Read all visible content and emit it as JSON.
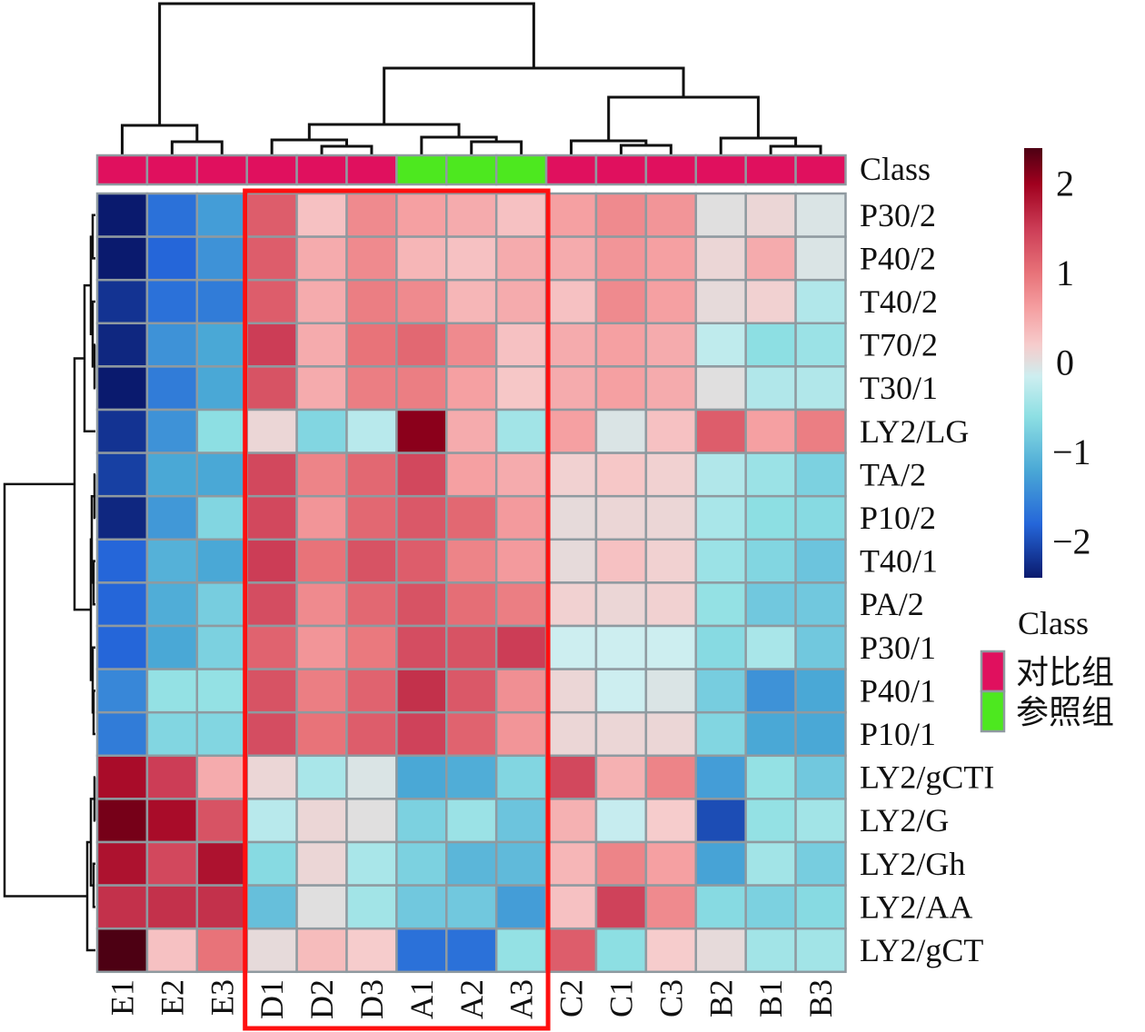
{
  "chart_data": {
    "type": "heatmap",
    "title": "",
    "columns": [
      "E1",
      "E2",
      "E3",
      "D1",
      "D2",
      "D3",
      "A1",
      "A2",
      "A3",
      "C2",
      "C1",
      "C3",
      "B2",
      "B1",
      "B3"
    ],
    "rows": [
      "P30/2",
      "P40/2",
      "T40/2",
      "T70/2",
      "T30/1",
      "LY2/LG",
      "TA/2",
      "P10/2",
      "T40/1",
      "PA/2",
      "P30/1",
      "P40/1",
      "P10/1",
      "LY2/gCTI",
      "LY2/G",
      "LY2/Gh",
      "LY2/AA",
      "LY2/gCT"
    ],
    "values": [
      [
        -2.4,
        -1.7,
        -1.3,
        1.2,
        0.3,
        0.8,
        0.6,
        0.5,
        0.3,
        0.6,
        0.8,
        0.7,
        0.0,
        0.1,
        -0.05
      ],
      [
        -2.4,
        -1.8,
        -1.4,
        1.2,
        0.5,
        0.8,
        0.4,
        0.3,
        0.5,
        0.5,
        0.7,
        0.6,
        0.1,
        0.5,
        -0.05
      ],
      [
        -2.2,
        -1.7,
        -1.6,
        1.2,
        0.5,
        0.9,
        0.8,
        0.4,
        0.5,
        0.3,
        0.8,
        0.6,
        0.05,
        0.15,
        -0.35
      ],
      [
        -2.3,
        -1.4,
        -1.2,
        1.5,
        0.5,
        1.0,
        1.1,
        0.8,
        0.3,
        0.5,
        0.6,
        0.5,
        -0.25,
        -0.6,
        -0.5
      ],
      [
        -2.4,
        -1.6,
        -1.2,
        1.3,
        0.5,
        0.9,
        0.9,
        0.6,
        0.25,
        0.5,
        0.6,
        0.5,
        0.0,
        -0.35,
        -0.35
      ],
      [
        -2.2,
        -1.4,
        -0.6,
        0.1,
        -0.7,
        -0.3,
        2.1,
        0.5,
        -0.45,
        0.6,
        -0.05,
        0.3,
        1.2,
        0.6,
        0.9
      ],
      [
        -2.1,
        -1.2,
        -1.2,
        1.4,
        0.85,
        1.1,
        1.4,
        0.6,
        0.5,
        0.15,
        0.25,
        0.15,
        -0.35,
        -0.5,
        -0.75
      ],
      [
        -2.3,
        -1.35,
        -0.7,
        1.4,
        0.7,
        1.1,
        1.25,
        1.1,
        0.65,
        0.05,
        0.1,
        0.1,
        -0.4,
        -0.6,
        -0.65
      ],
      [
        -1.8,
        -1.1,
        -1.2,
        1.5,
        1.0,
        1.3,
        1.2,
        0.85,
        0.65,
        0.05,
        0.3,
        0.15,
        -0.5,
        -0.7,
        -0.9
      ],
      [
        -1.8,
        -1.15,
        -0.8,
        1.35,
        0.8,
        1.1,
        1.3,
        1.05,
        0.9,
        0.15,
        0.1,
        0.15,
        -0.55,
        -0.85,
        -0.85
      ],
      [
        -1.8,
        -1.2,
        -0.75,
        1.15,
        0.7,
        0.95,
        1.35,
        1.3,
        1.5,
        -0.15,
        -0.15,
        -0.15,
        -0.65,
        -0.4,
        -0.85
      ],
      [
        -1.5,
        -0.55,
        -0.55,
        1.3,
        0.9,
        1.15,
        1.6,
        1.25,
        0.75,
        0.1,
        -0.15,
        -0.05,
        -0.8,
        -1.4,
        -1.2
      ],
      [
        -1.6,
        -0.7,
        -0.7,
        1.35,
        1.0,
        1.2,
        1.45,
        1.15,
        0.7,
        0.1,
        0.1,
        0.1,
        -0.7,
        -1.2,
        -1.2
      ],
      [
        1.9,
        1.5,
        0.5,
        0.1,
        -0.4,
        -0.05,
        -1.2,
        -1.15,
        -0.7,
        1.4,
        0.45,
        0.85,
        -1.3,
        -0.55,
        -0.85
      ],
      [
        2.2,
        1.9,
        1.3,
        -0.3,
        0.1,
        0.0,
        -0.75,
        -0.5,
        -0.9,
        0.45,
        -0.2,
        0.2,
        -2.0,
        -0.55,
        -0.45
      ],
      [
        1.85,
        1.4,
        1.85,
        -0.65,
        0.1,
        -0.4,
        -0.75,
        -1.05,
        -1.0,
        0.4,
        0.85,
        0.6,
        -1.25,
        -0.45,
        -0.8
      ],
      [
        1.6,
        1.6,
        1.6,
        -0.95,
        0.0,
        -0.45,
        -0.85,
        -0.85,
        -1.3,
        0.3,
        1.45,
        0.8,
        -0.65,
        -0.75,
        -0.65
      ],
      [
        2.4,
        0.3,
        1.0,
        0.05,
        0.35,
        0.2,
        -1.7,
        -1.7,
        -0.55,
        1.2,
        -0.6,
        0.2,
        0.05,
        -0.45,
        -0.45
      ]
    ],
    "color_scale": {
      "min": -2.4,
      "max": 2.4,
      "stops": [
        {
          "value": -2.4,
          "color": "#0a1a6e"
        },
        {
          "value": -1.8,
          "color": "#2566d9"
        },
        {
          "value": -1.2,
          "color": "#4aa8d6"
        },
        {
          "value": -0.6,
          "color": "#8ddfe3"
        },
        {
          "value": -0.15,
          "color": "#cdeef0"
        },
        {
          "value": 0.0,
          "color": "#e0dfdf"
        },
        {
          "value": 0.2,
          "color": "#f6cccc"
        },
        {
          "value": 0.6,
          "color": "#f5a0a2"
        },
        {
          "value": 1.0,
          "color": "#e87379"
        },
        {
          "value": 1.5,
          "color": "#cc3d56"
        },
        {
          "value": 2.0,
          "color": "#a0001e"
        },
        {
          "value": 2.4,
          "color": "#4d0013"
        }
      ],
      "ticks": [
        2,
        1,
        0,
        -1,
        -2
      ],
      "tick_labels": [
        "2",
        "1",
        "0",
        "−1",
        "−2"
      ]
    },
    "annotation": {
      "name": "Class",
      "values": [
        "对比组",
        "对比组",
        "对比组",
        "对比组",
        "对比组",
        "对比组",
        "参照组",
        "参照组",
        "参照组",
        "对比组",
        "对比组",
        "对比组",
        "对比组",
        "对比组",
        "对比组"
      ]
    },
    "legend": {
      "title": "Class",
      "entries": [
        {
          "label": "对比组",
          "color": "#e0105e"
        },
        {
          "label": "参照组",
          "color": "#4de81f"
        }
      ],
      "placement": "right"
    },
    "highlight": {
      "columns": [
        "D1",
        "D2",
        "D3",
        "A1",
        "A2",
        "A3"
      ],
      "color": "#ff1010"
    },
    "column_dendrogram": true,
    "row_dendrogram": true,
    "grid_color": "#8f9aa0"
  }
}
